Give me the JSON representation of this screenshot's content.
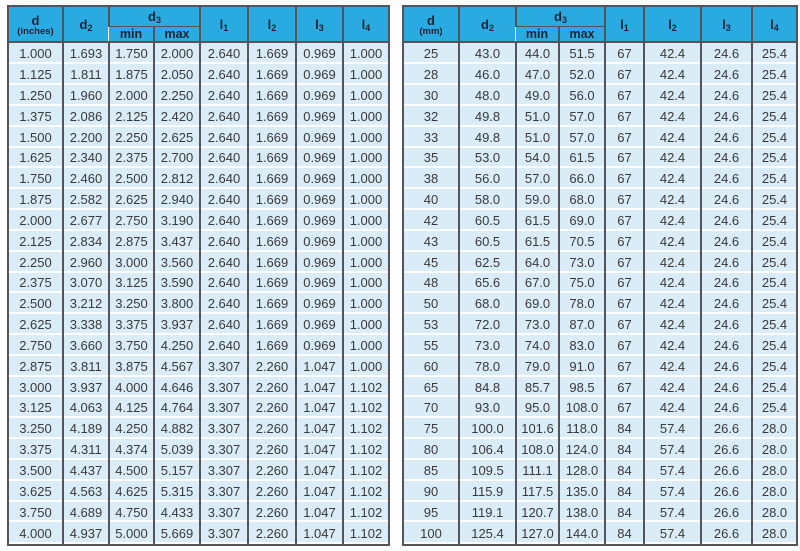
{
  "colors": {
    "header_bg": "#29abe2",
    "row_bg": "#d9ecf8",
    "row_separator": "#ffffff",
    "grid_dark": "#54555a",
    "header_text": "#1f2133",
    "body_text": "#39393b"
  },
  "columns": [
    "d",
    "d2",
    "d3_min",
    "d3_max",
    "l1",
    "l2",
    "l3",
    "l4"
  ],
  "tables": [
    {
      "id": "inches",
      "headers": {
        "d_base": "d",
        "d_unit": "(inches)",
        "d2_base": "d",
        "d2_sub": "2",
        "d3_base": "d",
        "d3_sub": "3",
        "min": "min",
        "max": "max",
        "l1_base": "l",
        "l1_sub": "1",
        "l2_base": "l",
        "l2_sub": "2",
        "l3_base": "l",
        "l3_sub": "3",
        "l4_base": "l",
        "l4_sub": "4"
      },
      "rows": [
        [
          "1.000",
          "1.693",
          "1.750",
          "2.000",
          "2.640",
          "1.669",
          "0.969",
          "1.000"
        ],
        [
          "1.125",
          "1.811",
          "1.875",
          "2.050",
          "2.640",
          "1.669",
          "0.969",
          "1.000"
        ],
        [
          "1.250",
          "1.960",
          "2.000",
          "2.250",
          "2.640",
          "1.669",
          "0.969",
          "1.000"
        ],
        [
          "1.375",
          "2.086",
          "2.125",
          "2.420",
          "2.640",
          "1.669",
          "0.969",
          "1.000"
        ],
        [
          "1.500",
          "2.200",
          "2.250",
          "2.625",
          "2.640",
          "1.669",
          "0.969",
          "1.000"
        ],
        [
          "1.625",
          "2.340",
          "2.375",
          "2.700",
          "2.640",
          "1.669",
          "0.969",
          "1.000"
        ],
        [
          "1.750",
          "2.460",
          "2.500",
          "2.812",
          "2.640",
          "1.669",
          "0.969",
          "1.000"
        ],
        [
          "1.875",
          "2.582",
          "2.625",
          "2.940",
          "2.640",
          "1.669",
          "0.969",
          "1.000"
        ],
        [
          "2.000",
          "2.677",
          "2.750",
          "3.190",
          "2.640",
          "1.669",
          "0.969",
          "1.000"
        ],
        [
          "2.125",
          "2.834",
          "2.875",
          "3.437",
          "2.640",
          "1.669",
          "0.969",
          "1.000"
        ],
        [
          "2.250",
          "2.960",
          "3.000",
          "3.560",
          "2.640",
          "1.669",
          "0.969",
          "1.000"
        ],
        [
          "2.375",
          "3.070",
          "3.125",
          "3.590",
          "2.640",
          "1.669",
          "0.969",
          "1.000"
        ],
        [
          "2.500",
          "3.212",
          "3.250",
          "3.800",
          "2.640",
          "1.669",
          "0.969",
          "1.000"
        ],
        [
          "2.625",
          "3.338",
          "3.375",
          "3.937",
          "2.640",
          "1.669",
          "0.969",
          "1.000"
        ],
        [
          "2.750",
          "3.660",
          "3.750",
          "4.250",
          "2.640",
          "1.669",
          "0.969",
          "1.000"
        ],
        [
          "2.875",
          "3.811",
          "3.875",
          "4.567",
          "3.307",
          "2.260",
          "1.047",
          "1.000"
        ],
        [
          "3.000",
          "3.937",
          "4.000",
          "4.646",
          "3.307",
          "2.260",
          "1.047",
          "1.102"
        ],
        [
          "3.125",
          "4.063",
          "4.125",
          "4.764",
          "3.307",
          "2.260",
          "1.047",
          "1.102"
        ],
        [
          "3.250",
          "4.189",
          "4.250",
          "4.882",
          "3.307",
          "2.260",
          "1.047",
          "1.102"
        ],
        [
          "3.375",
          "4.311",
          "4.374",
          "5.039",
          "3.307",
          "2.260",
          "1.047",
          "1.102"
        ],
        [
          "3.500",
          "4.437",
          "4.500",
          "5.157",
          "3.307",
          "2.260",
          "1.047",
          "1.102"
        ],
        [
          "3.625",
          "4.563",
          "4.625",
          "5.315",
          "3.307",
          "2.260",
          "1.047",
          "1.102"
        ],
        [
          "3.750",
          "4.689",
          "4.750",
          "4.433",
          "3.307",
          "2.260",
          "1.047",
          "1.102"
        ],
        [
          "4.000",
          "4.937",
          "5.000",
          "5.669",
          "3.307",
          "2.260",
          "1.047",
          "1.102"
        ]
      ]
    },
    {
      "id": "mm",
      "headers": {
        "d_base": "d",
        "d_unit": "(mm)",
        "d2_base": "d",
        "d2_sub": "2",
        "d3_base": "d",
        "d3_sub": "3",
        "min": "min",
        "max": "max",
        "l1_base": "l",
        "l1_sub": "1",
        "l2_base": "l",
        "l2_sub": "2",
        "l3_base": "l",
        "l3_sub": "3",
        "l4_base": "l",
        "l4_sub": "4"
      },
      "rows": [
        [
          "25",
          "43.0",
          "44.0",
          "51.5",
          "67",
          "42.4",
          "24.6",
          "25.4"
        ],
        [
          "28",
          "46.0",
          "47.0",
          "52.0",
          "67",
          "42.4",
          "24.6",
          "25.4"
        ],
        [
          "30",
          "48.0",
          "49.0",
          "56.0",
          "67",
          "42.4",
          "24.6",
          "25.4"
        ],
        [
          "32",
          "49.8",
          "51.0",
          "57.0",
          "67",
          "42.4",
          "24.6",
          "25.4"
        ],
        [
          "33",
          "49.8",
          "51.0",
          "57.0",
          "67",
          "42.4",
          "24.6",
          "25.4"
        ],
        [
          "35",
          "53.0",
          "54.0",
          "61.5",
          "67",
          "42.4",
          "24.6",
          "25.4"
        ],
        [
          "38",
          "56.0",
          "57.0",
          "66.0",
          "67",
          "42.4",
          "24.6",
          "25.4"
        ],
        [
          "40",
          "58.0",
          "59.0",
          "68.0",
          "67",
          "42.4",
          "24.6",
          "25.4"
        ],
        [
          "42",
          "60.5",
          "61.5",
          "69.0",
          "67",
          "42.4",
          "24.6",
          "25.4"
        ],
        [
          "43",
          "60.5",
          "61.5",
          "70.5",
          "67",
          "42.4",
          "24.6",
          "25.4"
        ],
        [
          "45",
          "62.5",
          "64.0",
          "73.0",
          "67",
          "42.4",
          "24.6",
          "25.4"
        ],
        [
          "48",
          "65.6",
          "67.0",
          "75.0",
          "67",
          "42.4",
          "24.6",
          "25.4"
        ],
        [
          "50",
          "68.0",
          "69.0",
          "78.0",
          "67",
          "42.4",
          "24.6",
          "25.4"
        ],
        [
          "53",
          "72.0",
          "73.0",
          "87.0",
          "67",
          "42.4",
          "24.6",
          "25.4"
        ],
        [
          "55",
          "73.0",
          "74.0",
          "83.0",
          "67",
          "42.4",
          "24.6",
          "25.4"
        ],
        [
          "60",
          "78.0",
          "79.0",
          "91.0",
          "67",
          "42.4",
          "24.6",
          "25.4"
        ],
        [
          "65",
          "84.8",
          "85.7",
          "98.5",
          "67",
          "42.4",
          "24.6",
          "25.4"
        ],
        [
          "70",
          "93.0",
          "95.0",
          "108.0",
          "67",
          "42.4",
          "24.6",
          "25.4"
        ],
        [
          "75",
          "100.0",
          "101.6",
          "118.0",
          "84",
          "57.4",
          "26.6",
          "28.0"
        ],
        [
          "80",
          "106.4",
          "108.0",
          "124.0",
          "84",
          "57.4",
          "26.6",
          "28.0"
        ],
        [
          "85",
          "109.5",
          "111.1",
          "128.0",
          "84",
          "57.4",
          "26.6",
          "28.0"
        ],
        [
          "90",
          "115.9",
          "117.5",
          "135.0",
          "84",
          "57.4",
          "26.6",
          "28.0"
        ],
        [
          "95",
          "119.1",
          "120.7",
          "138.0",
          "84",
          "57.4",
          "26.6",
          "28.0"
        ],
        [
          "100",
          "125.4",
          "127.0",
          "144.0",
          "84",
          "57.4",
          "26.6",
          "28.0"
        ]
      ]
    }
  ]
}
